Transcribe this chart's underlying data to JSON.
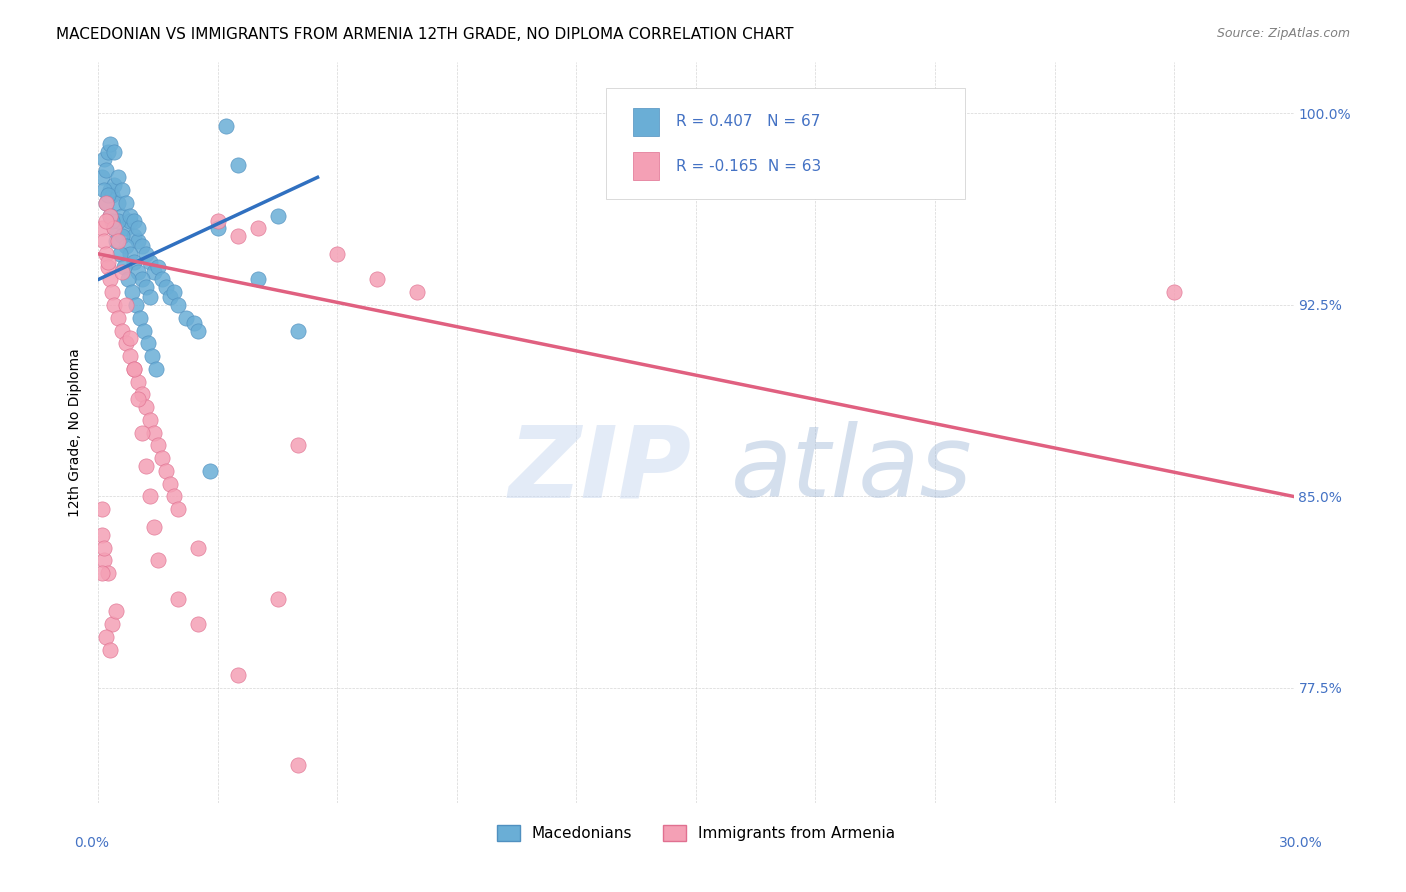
{
  "title": "MACEDONIAN VS IMMIGRANTS FROM ARMENIA 12TH GRADE, NO DIPLOMA CORRELATION CHART",
  "source": "Source: ZipAtlas.com",
  "ylabel": "12th Grade, No Diploma",
  "yticks": [
    77.5,
    85.0,
    92.5,
    100.0
  ],
  "ytick_labels": [
    "77.5%",
    "85.0%",
    "92.5%",
    "100.0%"
  ],
  "xmin": 0.0,
  "xmax": 30.0,
  "ymin": 73.0,
  "ymax": 102.0,
  "blue_R": 0.407,
  "blue_N": 67,
  "pink_R": -0.165,
  "pink_N": 63,
  "blue_color": "#6aaed6",
  "pink_color": "#f4a0b5",
  "blue_edge": "#5090c0",
  "pink_edge": "#e07090",
  "trend_blue": "#3070c0",
  "trend_pink": "#e06080",
  "legend_label_blue": "Macedonians",
  "legend_label_pink": "Immigrants from Armenia",
  "label_color": "#4472c4",
  "blue_dots": [
    [
      0.1,
      97.5
    ],
    [
      0.15,
      98.2
    ],
    [
      0.2,
      97.8
    ],
    [
      0.25,
      98.5
    ],
    [
      0.3,
      97.0
    ],
    [
      0.35,
      96.8
    ],
    [
      0.4,
      97.2
    ],
    [
      0.5,
      96.5
    ],
    [
      0.6,
      96.0
    ],
    [
      0.7,
      95.5
    ],
    [
      0.8,
      95.8
    ],
    [
      0.9,
      95.2
    ],
    [
      1.0,
      95.0
    ],
    [
      1.1,
      94.8
    ],
    [
      1.2,
      94.5
    ],
    [
      1.3,
      94.2
    ],
    [
      1.4,
      93.8
    ],
    [
      1.5,
      94.0
    ],
    [
      1.6,
      93.5
    ],
    [
      1.7,
      93.2
    ],
    [
      1.8,
      92.8
    ],
    [
      1.9,
      93.0
    ],
    [
      2.0,
      92.5
    ],
    [
      2.2,
      92.0
    ],
    [
      2.4,
      91.8
    ],
    [
      0.2,
      96.5
    ],
    [
      0.3,
      96.0
    ],
    [
      0.4,
      95.5
    ],
    [
      0.5,
      95.8
    ],
    [
      0.6,
      95.2
    ],
    [
      0.7,
      94.8
    ],
    [
      0.8,
      94.5
    ],
    [
      0.9,
      94.2
    ],
    [
      1.0,
      93.8
    ],
    [
      1.1,
      93.5
    ],
    [
      1.2,
      93.2
    ],
    [
      1.3,
      92.8
    ],
    [
      0.15,
      97.0
    ],
    [
      0.25,
      96.8
    ],
    [
      0.35,
      95.8
    ],
    [
      0.45,
      95.0
    ],
    [
      0.55,
      94.5
    ],
    [
      0.65,
      94.0
    ],
    [
      0.75,
      93.5
    ],
    [
      0.85,
      93.0
    ],
    [
      0.95,
      92.5
    ],
    [
      1.05,
      92.0
    ],
    [
      1.15,
      91.5
    ],
    [
      1.25,
      91.0
    ],
    [
      1.35,
      90.5
    ],
    [
      1.45,
      90.0
    ],
    [
      2.5,
      91.5
    ],
    [
      3.0,
      95.5
    ],
    [
      3.2,
      99.5
    ],
    [
      3.5,
      98.0
    ],
    [
      4.0,
      93.5
    ],
    [
      4.5,
      96.0
    ],
    [
      5.0,
      91.5
    ],
    [
      2.8,
      86.0
    ],
    [
      0.3,
      98.8
    ],
    [
      0.4,
      98.5
    ],
    [
      0.5,
      97.5
    ],
    [
      0.6,
      97.0
    ],
    [
      0.7,
      96.5
    ],
    [
      0.8,
      96.0
    ],
    [
      0.9,
      95.8
    ],
    [
      1.0,
      95.5
    ]
  ],
  "pink_dots": [
    [
      0.1,
      95.5
    ],
    [
      0.15,
      95.0
    ],
    [
      0.2,
      94.5
    ],
    [
      0.25,
      94.0
    ],
    [
      0.3,
      93.5
    ],
    [
      0.35,
      93.0
    ],
    [
      0.4,
      92.5
    ],
    [
      0.5,
      92.0
    ],
    [
      0.6,
      91.5
    ],
    [
      0.7,
      91.0
    ],
    [
      0.8,
      90.5
    ],
    [
      0.9,
      90.0
    ],
    [
      1.0,
      89.5
    ],
    [
      1.1,
      89.0
    ],
    [
      1.2,
      88.5
    ],
    [
      1.3,
      88.0
    ],
    [
      1.4,
      87.5
    ],
    [
      1.5,
      87.0
    ],
    [
      1.6,
      86.5
    ],
    [
      1.7,
      86.0
    ],
    [
      1.8,
      85.5
    ],
    [
      1.9,
      85.0
    ],
    [
      2.0,
      84.5
    ],
    [
      2.5,
      83.0
    ],
    [
      3.0,
      95.8
    ],
    [
      3.5,
      95.2
    ],
    [
      4.0,
      95.5
    ],
    [
      5.0,
      87.0
    ],
    [
      6.0,
      94.5
    ],
    [
      7.0,
      93.5
    ],
    [
      8.0,
      93.0
    ],
    [
      4.5,
      81.0
    ],
    [
      0.2,
      96.5
    ],
    [
      0.3,
      96.0
    ],
    [
      0.4,
      95.5
    ],
    [
      0.5,
      95.0
    ],
    [
      0.6,
      93.8
    ],
    [
      0.7,
      92.5
    ],
    [
      0.8,
      91.2
    ],
    [
      0.9,
      90.0
    ],
    [
      1.0,
      88.8
    ],
    [
      1.1,
      87.5
    ],
    [
      1.2,
      86.2
    ],
    [
      1.3,
      85.0
    ],
    [
      1.4,
      83.8
    ],
    [
      1.5,
      82.5
    ],
    [
      2.0,
      81.0
    ],
    [
      2.5,
      80.0
    ],
    [
      3.5,
      78.0
    ],
    [
      5.0,
      74.5
    ],
    [
      0.15,
      82.5
    ],
    [
      0.25,
      82.0
    ],
    [
      0.35,
      80.0
    ],
    [
      0.45,
      80.5
    ],
    [
      0.2,
      79.5
    ],
    [
      0.3,
      79.0
    ],
    [
      0.1,
      82.0
    ],
    [
      0.1,
      83.5
    ],
    [
      0.15,
      83.0
    ],
    [
      0.2,
      95.8
    ],
    [
      27.0,
      93.0
    ],
    [
      0.25,
      94.2
    ],
    [
      0.1,
      84.5
    ]
  ],
  "blue_trend_x": [
    0.0,
    5.5
  ],
  "blue_trend_y": [
    93.5,
    97.5
  ],
  "pink_trend_x": [
    0.0,
    30.0
  ],
  "pink_trend_y": [
    94.5,
    85.0
  ]
}
